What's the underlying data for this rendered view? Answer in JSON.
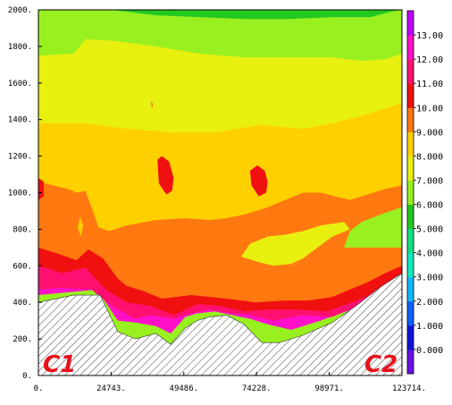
{
  "chart_data": {
    "type": "heatmap",
    "title": "",
    "xlabel": "",
    "ylabel": "",
    "xlim": [
      0,
      123714
    ],
    "ylim": [
      0,
      2000
    ],
    "x_tick_labels": [
      "0.",
      "24743.",
      "49486.",
      "74228.",
      "98971.",
      "123714."
    ],
    "x_ticks": [
      0,
      24743,
      49486,
      74228,
      98971,
      123714
    ],
    "y_tick_labels": [
      "0.",
      "200.",
      "400.",
      "600.",
      "800.",
      "1000.",
      "1200.",
      "1400.",
      "1600.",
      "1800.",
      "2000."
    ],
    "y_ticks": [
      0,
      200,
      400,
      600,
      800,
      1000,
      1200,
      1400,
      1600,
      1800,
      2000
    ],
    "colorbar": {
      "labels": [
        "0.000",
        "1.000",
        "2.000",
        "3.000",
        "4.000",
        "5.000",
        "6.000",
        "7.000",
        "8.000",
        "9.000",
        "10.00",
        "11.00",
        "12.00",
        "13.00"
      ],
      "levels": [
        0,
        1,
        2,
        3,
        4,
        5,
        6,
        7,
        8,
        9,
        10,
        11,
        12,
        13
      ],
      "colors": [
        "#6a10e8",
        "#1010d8",
        "#1060ff",
        "#10b8ff",
        "#10e8c0",
        "#10e080",
        "#20c820",
        "#98f020",
        "#e8f010",
        "#ffd000",
        "#ff7810",
        "#f01010",
        "#ff1070",
        "#ff10c8",
        "#c000ff"
      ]
    },
    "annotations": [
      "C1",
      "C2"
    ],
    "terrain": {
      "x": [
        0,
        12000,
        21000,
        27000,
        33000,
        40000,
        45000,
        50000,
        54000,
        58000,
        64000,
        70000,
        76000,
        82000,
        90000,
        100000,
        108000,
        116000,
        123714
      ],
      "y": [
        400,
        440,
        440,
        240,
        200,
        230,
        170,
        260,
        300,
        320,
        330,
        280,
        180,
        180,
        220,
        290,
        380,
        480,
        560
      ]
    },
    "bands": [
      {
        "level": 12,
        "color": "#ff10c8",
        "x": [
          0,
          20000,
          27000,
          33000,
          40000,
          45000,
          50000,
          54000,
          60000,
          66000,
          72000,
          78000,
          86000,
          96000,
          108000,
          116000,
          123714
        ],
        "y": [
          440,
          470,
          300,
          290,
          270,
          230,
          320,
          340,
          350,
          330,
          310,
          280,
          250,
          300,
          370,
          440,
          540
        ]
      },
      {
        "level": 11,
        "color": "#ff1070",
        "x": [
          0,
          8000,
          18000,
          25000,
          33000,
          38000,
          46000,
          52000,
          58000,
          66000,
          72000,
          80000,
          90000,
          100000,
          110000,
          118000,
          123714
        ],
        "y": [
          470,
          480,
          470,
          380,
          310,
          330,
          310,
          340,
          360,
          340,
          330,
          300,
          330,
          320,
          390,
          450,
          540
        ]
      },
      {
        "level": 10,
        "color": "#f01010",
        "x": [
          0,
          8000,
          16000,
          23000,
          30000,
          38000,
          46000,
          54000,
          62000,
          70000,
          78000,
          88000,
          98000,
          110000,
          118000,
          123714
        ],
        "y": [
          600,
          560,
          590,
          470,
          400,
          380,
          330,
          390,
          380,
          350,
          360,
          360,
          350,
          420,
          490,
          560
        ]
      },
      {
        "level": 9,
        "color": "#ff7810",
        "x": [
          0,
          6000,
          13000,
          17000,
          22000,
          27000,
          30000,
          36000,
          42000,
          52000,
          64000,
          74000,
          84000,
          92000,
          100000,
          106000,
          112000,
          118000,
          123714
        ],
        "y": [
          700,
          670,
          630,
          690,
          640,
          530,
          490,
          460,
          420,
          440,
          420,
          400,
          410,
          410,
          430,
          470,
          510,
          560,
          600
        ]
      },
      {
        "level": 8,
        "color": "#ffd000",
        "x": [
          0,
          10000,
          13000,
          16000,
          18500,
          20500,
          24000,
          30000,
          40000,
          50000,
          58000,
          64000,
          70000,
          78000,
          84000,
          90000,
          96000,
          101000,
          106000,
          112000,
          118000,
          123714
        ],
        "y": [
          1060,
          1020,
          1000,
          1010,
          900,
          810,
          790,
          820,
          850,
          860,
          850,
          860,
          880,
          920,
          960,
          1000,
          1000,
          980,
          960,
          990,
          1020,
          1040
        ]
      },
      {
        "level": 7,
        "color": "#e8f010",
        "x": [
          0,
          15000,
          30000,
          45000,
          60000,
          75000,
          90000,
          100000,
          110000,
          123714
        ],
        "y": [
          1380,
          1380,
          1350,
          1330,
          1330,
          1370,
          1350,
          1380,
          1420,
          1490
        ]
      },
      {
        "level": 6,
        "color": "#98f020",
        "x": [
          0,
          12000,
          16000,
          26000,
          40000,
          55000,
          70000,
          85000,
          100000,
          110000,
          118000,
          123714
        ],
        "y": [
          1750,
          1760,
          1840,
          1830,
          1800,
          1760,
          1740,
          1740,
          1740,
          1720,
          1730,
          1760
        ]
      },
      {
        "level": 5,
        "color": "#20c820",
        "x": [
          25000,
          40000,
          55000,
          70000,
          85000,
          100000,
          113000,
          120000,
          123714
        ],
        "y": [
          2000,
          1970,
          1960,
          1950,
          1950,
          1960,
          1960,
          1990,
          2000
        ]
      }
    ],
    "inner_features": [
      {
        "level": 8,
        "color": "#e8f010",
        "x": [
          69000,
          75000,
          80000,
          86000,
          90000,
          95000,
          100000,
          106000,
          104000,
          96000,
          90000,
          84000,
          78000,
          72000,
          69000
        ],
        "y": [
          650,
          620,
          600,
          610,
          640,
          700,
          760,
          800,
          840,
          820,
          790,
          770,
          760,
          720,
          650
        ]
      },
      {
        "level": 5,
        "color": "#20c820",
        "x": [
          106000,
          112000,
          118000,
          123714,
          123714,
          117000,
          110000,
          106000
        ],
        "y": [
          720,
          740,
          760,
          770,
          880,
          830,
          790,
          720
        ]
      },
      {
        "level": 7,
        "color": "#98f020",
        "x": [
          104000,
          110000,
          118000,
          123714,
          123714,
          118000,
          110000,
          106000,
          104000
        ],
        "y": [
          700,
          700,
          700,
          700,
          920,
          890,
          840,
          790,
          700
        ]
      },
      {
        "level": 10,
        "color": "#f01010",
        "x": [
          40500,
          42000,
          44500,
          46000,
          45500,
          43500,
          41000,
          40500
        ],
        "y": [
          1180,
          1200,
          1170,
          1080,
          1010,
          990,
          1050,
          1180
        ]
      },
      {
        "level": 10,
        "color": "#f01010",
        "x": [
          72000,
          74500,
          77000,
          78000,
          77500,
          75000,
          72500,
          72000
        ],
        "y": [
          1120,
          1150,
          1120,
          1060,
          1000,
          980,
          1040,
          1120
        ]
      },
      {
        "level": 10,
        "color": "#f01010",
        "x": [
          0,
          1800,
          1800,
          0
        ],
        "y": [
          1080,
          1060,
          980,
          960
        ]
      },
      {
        "level": 8,
        "color": "#ffd000",
        "x": [
          13400,
          14200,
          15200,
          14400,
          13400
        ],
        "y": [
          810,
          870,
          820,
          760,
          810
        ]
      },
      {
        "level": 8,
        "color": "#ffd000",
        "x": [
          38000,
          39500,
          40500,
          39000,
          38000
        ],
        "y": [
          900,
          920,
          880,
          860,
          900
        ]
      },
      {
        "level": 9,
        "color": "#ff7810",
        "x": [
          38300,
          38600,
          39000,
          38600,
          38300
        ],
        "y": [
          1490,
          1500,
          1480,
          1460,
          1490
        ]
      }
    ]
  }
}
